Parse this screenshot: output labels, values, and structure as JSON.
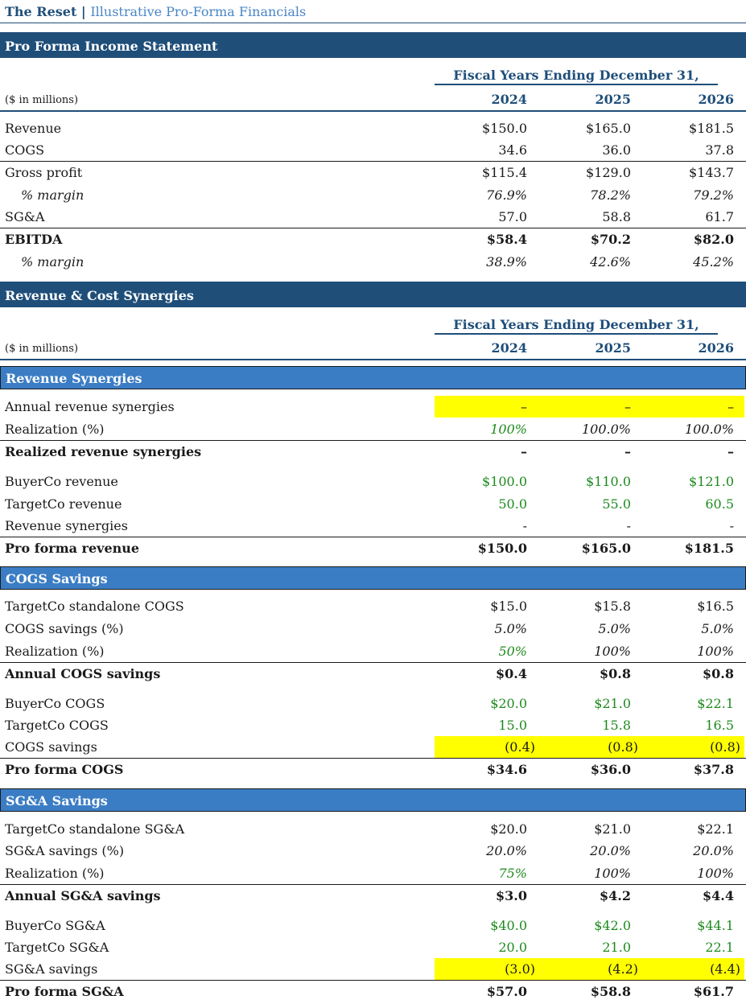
{
  "header": {
    "brand": "The Reset",
    "separator": "|",
    "subtitle": "Illustrative Pro-Forma Financials"
  },
  "income": {
    "title": "Pro Forma Income Statement",
    "fy_label": "Fiscal Years Ending December 31,",
    "unit": "($ in millions)",
    "years": [
      "2024",
      "2025",
      "2026"
    ],
    "rows": [
      {
        "label": "Revenue",
        "values": [
          "$150.0",
          "$165.0",
          "$181.5"
        ]
      },
      {
        "label": "COGS",
        "values": [
          "34.6",
          "36.0",
          "37.8"
        ]
      },
      {
        "label": "Gross profit",
        "values": [
          "$115.4",
          "$129.0",
          "$143.7"
        ]
      },
      {
        "label": "% margin",
        "values": [
          "76.9%",
          "78.2%",
          "79.2%"
        ]
      },
      {
        "label": "SG&A",
        "values": [
          "57.0",
          "58.8",
          "61.7"
        ]
      },
      {
        "label": "EBITDA",
        "values": [
          "$58.4",
          "$70.2",
          "$82.0"
        ]
      },
      {
        "label": "% margin",
        "values": [
          "38.9%",
          "42.6%",
          "45.2%"
        ]
      }
    ]
  },
  "synergies": {
    "title": "Revenue & Cost Synergies",
    "fy_label": "Fiscal Years Ending December 31,",
    "unit": "($ in millions)",
    "years": [
      "2024",
      "2025",
      "2026"
    ],
    "revenue": {
      "title": "Revenue Synergies",
      "rows": [
        {
          "label": "Annual revenue synergies",
          "values": [
            "–",
            "–",
            "–"
          ]
        },
        {
          "label": "Realization (%)",
          "values": [
            "100%",
            "100.0%",
            "100.0%"
          ]
        },
        {
          "label": "Realized revenue synergies",
          "values": [
            "–",
            "–",
            "–"
          ]
        },
        {
          "label": "BuyerCo revenue",
          "values": [
            "$100.0",
            "$110.0",
            "$121.0"
          ]
        },
        {
          "label": "TargetCo revenue",
          "values": [
            "50.0",
            "55.0",
            "60.5"
          ]
        },
        {
          "label": "Revenue synergies",
          "values": [
            "-",
            "-",
            "-"
          ]
        },
        {
          "label": "Pro forma revenue",
          "values": [
            "$150.0",
            "$165.0",
            "$181.5"
          ]
        }
      ]
    },
    "cogs": {
      "title": "COGS Savings",
      "rows": [
        {
          "label": "TargetCo standalone COGS",
          "values": [
            "$15.0",
            "$15.8",
            "$16.5"
          ]
        },
        {
          "label": "COGS savings (%)",
          "values": [
            "5.0%",
            "5.0%",
            "5.0%"
          ]
        },
        {
          "label": "Realization (%)",
          "values": [
            "50%",
            "100%",
            "100%"
          ]
        },
        {
          "label": "Annual COGS savings",
          "values": [
            "$0.4",
            "$0.8",
            "$0.8"
          ]
        },
        {
          "label": "BuyerCo COGS",
          "values": [
            "$20.0",
            "$21.0",
            "$22.1"
          ]
        },
        {
          "label": "TargetCo COGS",
          "values": [
            "15.0",
            "15.8",
            "16.5"
          ]
        },
        {
          "label": "COGS savings",
          "values": [
            "(0.4)",
            "(0.8)",
            "(0.8)"
          ]
        },
        {
          "label": "Pro forma COGS",
          "values": [
            "$34.6",
            "$36.0",
            "$37.8"
          ]
        }
      ]
    },
    "sga": {
      "title": "SG&A Savings",
      "rows": [
        {
          "label": "TargetCo standalone SG&A",
          "values": [
            "$20.0",
            "$21.0",
            "$22.1"
          ]
        },
        {
          "label": "SG&A savings (%)",
          "values": [
            "20.0%",
            "20.0%",
            "20.0%"
          ]
        },
        {
          "label": "Realization (%)",
          "values": [
            "75%",
            "100%",
            "100%"
          ]
        },
        {
          "label": "Annual SG&A savings",
          "values": [
            "$3.0",
            "$4.2",
            "$4.4"
          ]
        },
        {
          "label": "BuyerCo SG&A",
          "values": [
            "$40.0",
            "$42.0",
            "$44.1"
          ]
        },
        {
          "label": "TargetCo SG&A",
          "values": [
            "20.0",
            "21.0",
            "22.1"
          ]
        },
        {
          "label": "SG&A savings",
          "values": [
            "(3.0)",
            "(4.2)",
            "(4.4)"
          ]
        },
        {
          "label": "Pro forma SG&A",
          "values": [
            "$57.0",
            "$58.8",
            "$61.7"
          ]
        }
      ]
    }
  },
  "colors": {
    "navy": "#1f4e79",
    "blue": "#3b7dc4",
    "green": "#1e8a1e",
    "highlight": "#ffff00"
  }
}
